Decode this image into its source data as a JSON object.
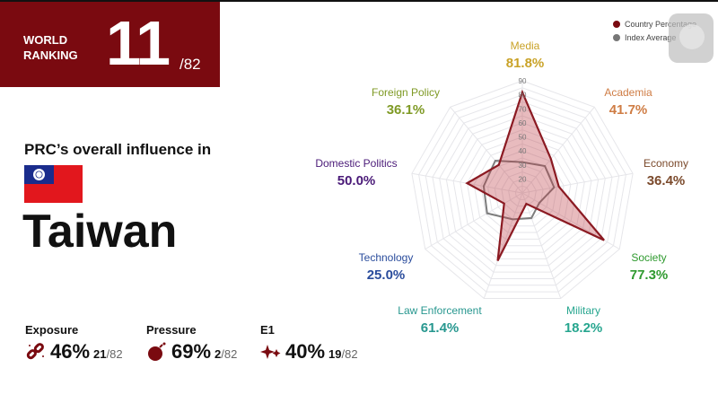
{
  "ranking": {
    "label_line1": "WORLD",
    "label_line2": "RANKING",
    "rank": "11",
    "total": "/82"
  },
  "intro": "PRC’s overall influence in",
  "country": "Taiwan",
  "metrics": [
    {
      "title": "Exposure",
      "value": "46%",
      "rank": "21",
      "total": "/82",
      "icon": "broken-link-icon"
    },
    {
      "title": "Pressure",
      "value": "69%",
      "rank": "2",
      "total": "/82",
      "icon": "bomb-icon"
    },
    {
      "title": "E1",
      "value": "40%",
      "rank": "19",
      "total": "/82",
      "icon": "sparkles-icon"
    }
  ],
  "legend": {
    "country": "Country Percentage",
    "average": "Index Average"
  },
  "colors": {
    "brand": "#7a0a10",
    "country": "#8b1a22",
    "average": "#777777"
  },
  "chart_data": {
    "type": "radar",
    "categories": [
      "Media",
      "Academia",
      "Economy",
      "Society",
      "Military",
      "Law Enforcement",
      "Technology",
      "Domestic Politics",
      "Foreign Policy"
    ],
    "category_colors": [
      "#c9a227",
      "#cf7d45",
      "#7b4a2c",
      "#2f9a2f",
      "#27a68f",
      "#27978f",
      "#2a4c9c",
      "#4a1a78",
      "#7f9a25"
    ],
    "labels": [
      "81.8%",
      "41.7%",
      "36.4%",
      "77.3%",
      "18.2%",
      "61.4%",
      "25.0%",
      "50.0%",
      "36.1%"
    ],
    "series": [
      {
        "name": "Country Percentage",
        "values": [
          81.8,
          41.7,
          36.4,
          77.3,
          18.2,
          61.4,
          25.0,
          50.0,
          36.1
        ]
      },
      {
        "name": "Index Average",
        "values": [
          32,
          35,
          33,
          24,
          29,
          30,
          39,
          38,
          40
        ]
      }
    ],
    "rlim": [
      10,
      90
    ],
    "ticks": [
      20,
      30,
      40,
      50,
      60,
      70,
      80,
      90
    ],
    "legend_position": "top-right"
  }
}
